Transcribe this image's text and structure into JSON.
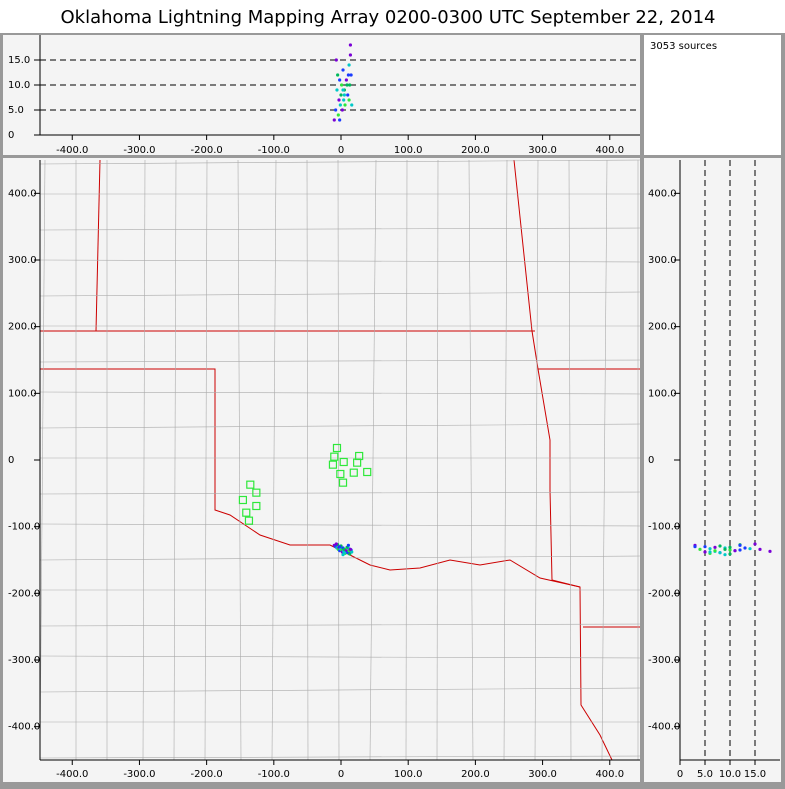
{
  "title": "Oklahoma Lightning Mapping Array   0200-0300 UTC  September 22, 2014",
  "source_count": "3053 sources",
  "plan_view": {
    "xlim": [
      -448,
      445
    ],
    "ylim": [
      -450,
      450
    ],
    "xticks": [
      {
        "value": -400,
        "label": "-400.0"
      },
      {
        "value": -300,
        "label": "-300.0"
      },
      {
        "value": -200,
        "label": "-200.0"
      },
      {
        "value": -100,
        "label": "-100.0"
      },
      0,
      {
        "value": 100,
        "label": "100.0"
      },
      {
        "value": 200,
        "label": "200.0"
      },
      {
        "value": 300,
        "label": "300.0"
      },
      {
        "value": 400,
        "label": "400.0"
      }
    ],
    "yticks": [
      {
        "value": 400,
        "label": "400.0"
      },
      {
        "value": 300,
        "label": "300.0"
      },
      {
        "value": 200,
        "label": "200.0"
      },
      {
        "value": 100,
        "label": "100.0"
      },
      0,
      {
        "value": -100,
        "label": "-100.0"
      },
      {
        "value": -200,
        "label": "-200.0"
      },
      {
        "value": -300,
        "label": "-300.0"
      },
      {
        "value": -400,
        "label": "-400.0"
      }
    ]
  },
  "alt_x_view": {
    "ylim": [
      0,
      20
    ],
    "yticks": [
      0,
      {
        "value": 5,
        "label": "5.0"
      },
      {
        "value": 10,
        "label": "10.0"
      },
      {
        "value": 15,
        "label": "15.0"
      }
    ]
  },
  "alt_y_view": {
    "xlim": [
      0,
      20
    ],
    "xticks": [
      0,
      {
        "value": 5,
        "label": "5.0"
      },
      {
        "value": 10,
        "label": "10.0"
      },
      {
        "value": 15,
        "label": "15.0"
      }
    ]
  },
  "stations": {
    "color": "#2ee83a",
    "x": [
      -6,
      -10,
      4,
      -12,
      27,
      24,
      39,
      19,
      -1,
      3,
      -135,
      -146,
      -126,
      -126,
      -141,
      -137
    ],
    "y": [
      18,
      5,
      -3,
      -7,
      6,
      -4,
      -18,
      -19,
      -21,
      -34,
      -37,
      -60,
      -49,
      -69,
      -79,
      -91
    ]
  },
  "sources": {
    "x": [
      -10,
      -8,
      -6,
      -5,
      -4,
      -3,
      -2,
      -1,
      0,
      1,
      2,
      3,
      4,
      5,
      6,
      8,
      10,
      12,
      13,
      14,
      15,
      16,
      -7,
      -2,
      3,
      9,
      12,
      14,
      11,
      5
    ],
    "y": [
      -128,
      -130,
      -132,
      -127,
      -134,
      -131,
      -136,
      -133,
      -129,
      -135,
      -138,
      -132,
      -137,
      -134,
      -140,
      -136,
      -139,
      -133,
      -141,
      -137,
      -135,
      -138,
      -126,
      -130,
      -142,
      -131,
      -136,
      -134,
      -128,
      -139
    ],
    "alt": [
      3,
      5,
      9,
      12,
      4,
      7,
      11,
      6,
      8,
      10,
      5,
      13,
      7,
      9,
      6,
      11,
      8,
      14,
      10,
      18,
      12,
      6,
      15,
      3,
      9,
      10,
      7,
      16,
      12,
      8
    ],
    "colors": [
      "#7a00d6",
      "#1a3cff",
      "#00c8c8",
      "#00b85c",
      "#2ee83a",
      "#7a00d6",
      "#1a3cff",
      "#00c8c8",
      "#00b85c",
      "#2ee83a",
      "#7a00d6",
      "#1a3cff",
      "#00c8c8",
      "#00b85c",
      "#2ee83a",
      "#7a00d6",
      "#1a3cff",
      "#00c8c8",
      "#00b85c",
      "#7a00d6",
      "#1a3cff",
      "#00c8c8",
      "#7a00d6",
      "#1a3cff",
      "#00c8c8",
      "#00b85c",
      "#2ee83a",
      "#7a00d6",
      "#1a3cff",
      "#00c8c8"
    ]
  }
}
